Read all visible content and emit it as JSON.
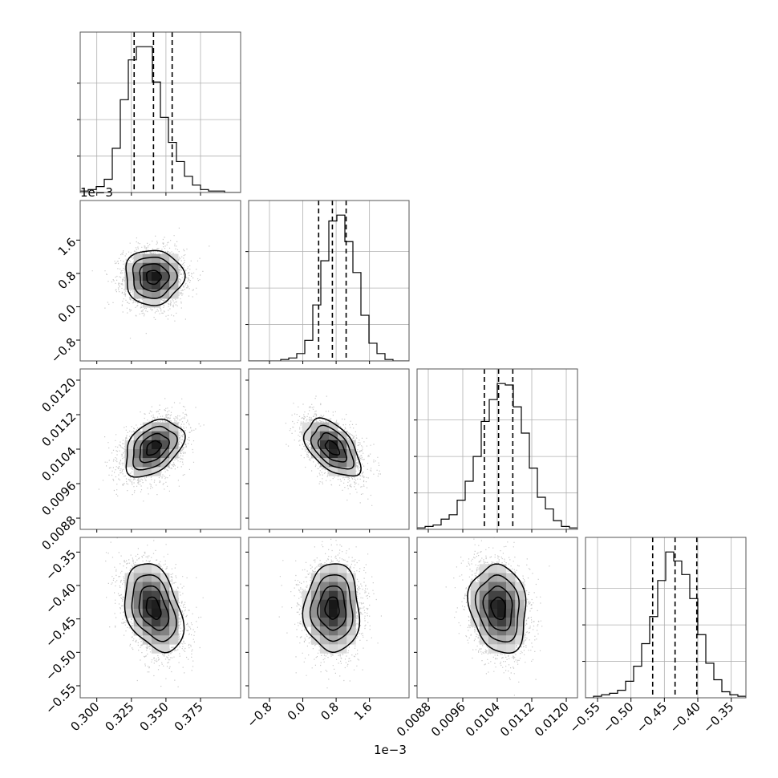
{
  "chart_data": {
    "type": "corner",
    "parameters": [
      {
        "range": [
          0.288,
          0.404
        ],
        "ticks": [
          0.3,
          0.325,
          0.35,
          0.375
        ],
        "tick_labels": [
          "0.300",
          "0.325",
          "0.350",
          "0.375"
        ],
        "offset": "",
        "quantiles": [
          0.327,
          0.341,
          0.3545
        ],
        "mean": 0.341,
        "sd": 0.0105
      },
      {
        "range": [
          -1.3,
          2.55
        ],
        "ticks": [
          -0.8,
          0.0,
          0.8,
          1.6
        ],
        "tick_labels": [
          "−0.8",
          "0.0",
          "0.8",
          "1.6"
        ],
        "offset": "1e−3",
        "quantiles": [
          0.38,
          0.71,
          1.04
        ],
        "mean": 0.71,
        "sd": 0.33
      },
      {
        "range": [
          0.00854,
          0.01226
        ],
        "ticks": [
          0.0088,
          0.0096,
          0.0104,
          0.0112,
          0.012
        ],
        "tick_labels": [
          "0.0088",
          "0.0096",
          "0.0104",
          "0.0112",
          "0.0120"
        ],
        "offset": "",
        "quantiles": [
          0.0101,
          0.01043,
          0.01076
        ],
        "mean": 0.01043,
        "sd": 0.00033
      },
      {
        "range": [
          -0.568,
          -0.328
        ],
        "ticks": [
          -0.55,
          -0.5,
          -0.45,
          -0.4,
          -0.35
        ],
        "tick_labels": [
          "−0.55",
          "−0.50",
          "−0.45",
          "−0.40",
          "−0.35"
        ],
        "offset": "",
        "quantiles": [
          -0.4675,
          -0.434,
          -0.4015
        ],
        "mean": -0.434,
        "sd": 0.033
      }
    ],
    "histograms": [
      [
        1,
        2,
        4,
        9,
        30,
        63,
        90,
        99,
        99,
        75,
        51,
        34,
        21,
        11,
        5,
        2,
        1,
        1,
        0,
        0
      ],
      [
        0,
        0,
        0,
        0,
        1,
        2,
        5,
        14,
        38,
        68,
        95,
        99,
        81,
        60,
        31,
        12,
        5,
        1,
        0,
        0
      ],
      [
        1,
        2,
        3,
        7,
        10,
        20,
        33,
        50,
        74,
        89,
        100,
        99,
        84,
        66,
        42,
        22,
        14,
        6,
        2,
        1
      ],
      [
        0,
        1,
        2,
        3,
        5,
        11,
        21,
        36,
        54,
        78,
        97,
        91,
        82,
        66,
        42,
        23,
        12,
        4,
        2,
        1
      ]
    ],
    "correlations": {
      "1-0": 0.0,
      "2-0": 0.38,
      "2-1": -0.5,
      "3-0": -0.35,
      "3-1": 0.0,
      "3-2": -0.15
    },
    "quantile_levels": [
      0.16,
      0.5,
      0.84
    ],
    "grid": true,
    "colors": {
      "line": "#000000",
      "points": "#9a9a9a",
      "grid": "#b0b0b0"
    }
  }
}
